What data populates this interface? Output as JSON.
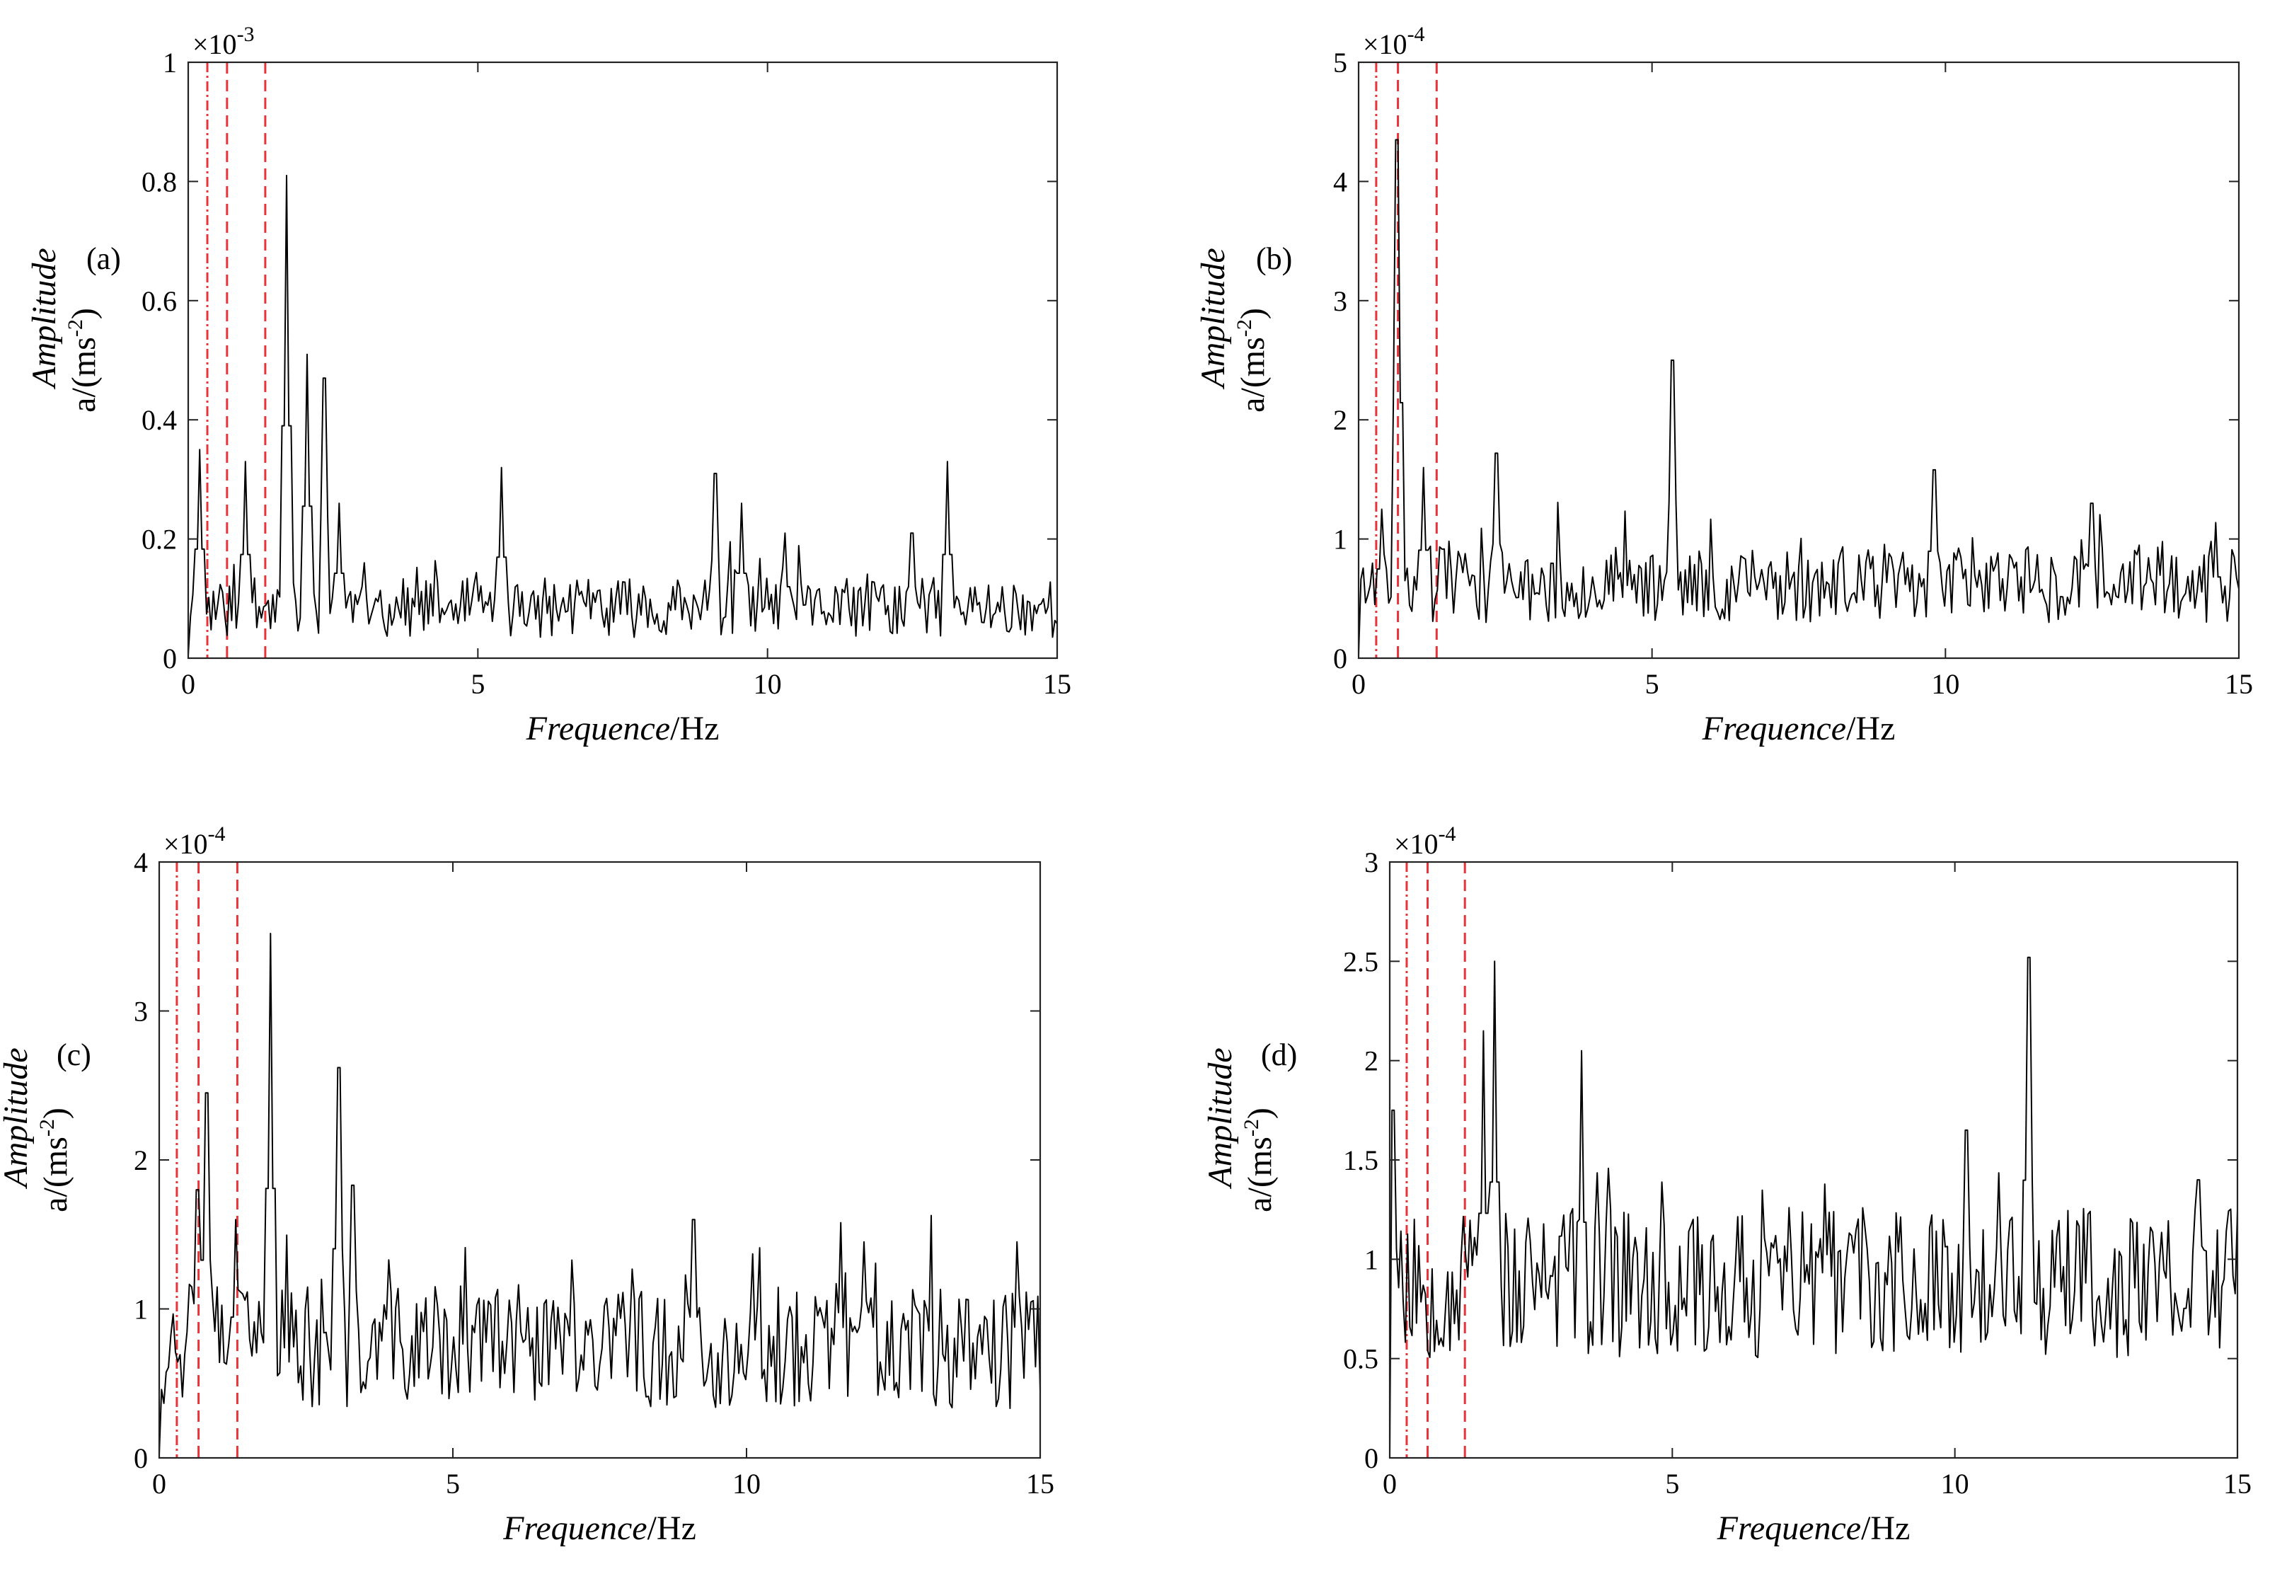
{
  "figure": {
    "background": "#ffffff",
    "line_color": "#000000",
    "marker_line_color": "#e8333a"
  },
  "chart_data": [
    {
      "type": "line",
      "panel": "(a)",
      "scale_label": "×10",
      "scale_exponent": "-3",
      "xlabel_italic": "Frequence",
      "xlabel_unit": "/Hz",
      "ylabel_italic": "Amplitude",
      "ylabel_unit": "a/(ms",
      "ylabel_unit_exp": "-2",
      "ylabel_unit_close": ")",
      "xlim": [
        0,
        15
      ],
      "ylim": [
        0,
        1
      ],
      "xticks": [
        "0",
        "5",
        "10",
        "15"
      ],
      "yticks": [
        "0",
        "0.2",
        "0.4",
        "0.6",
        "0.8",
        "1"
      ],
      "xtick_values": [
        0,
        5,
        10,
        15
      ],
      "ytick_values": [
        0,
        0.2,
        0.4,
        0.6,
        0.8,
        1
      ],
      "ref_lines": [
        0.33,
        0.67,
        1.33
      ],
      "peaks": [
        [
          0.2,
          0.35
        ],
        [
          0.98,
          0.33
        ],
        [
          1.7,
          0.81
        ],
        [
          2.05,
          0.51
        ],
        [
          2.35,
          0.47
        ],
        [
          2.6,
          0.26
        ],
        [
          5.4,
          0.32
        ],
        [
          9.1,
          0.31
        ],
        [
          9.55,
          0.26
        ],
        [
          10.3,
          0.21
        ],
        [
          12.5,
          0.21
        ],
        [
          13.1,
          0.33
        ]
      ],
      "baseline": 0.085,
      "noise": 0.05,
      "points": 380,
      "seed": 11
    },
    {
      "type": "line",
      "panel": "(b)",
      "scale_label": "×10",
      "scale_exponent": "-4",
      "xlabel_italic": "Frequence",
      "xlabel_unit": "/Hz",
      "ylabel_italic": "Amplitude",
      "ylabel_unit": "a/(ms",
      "ylabel_unit_exp": "-2",
      "ylabel_unit_close": ")",
      "xlim": [
        0,
        15
      ],
      "ylim": [
        0,
        5
      ],
      "xticks": [
        "0",
        "5",
        "10",
        "15"
      ],
      "yticks": [
        "0",
        "1",
        "2",
        "3",
        "4",
        "5"
      ],
      "xtick_values": [
        0,
        5,
        10,
        15
      ],
      "ytick_values": [
        0,
        1,
        2,
        3,
        4,
        5
      ],
      "ref_lines": [
        0.3,
        0.67,
        1.33
      ],
      "peaks": [
        [
          0.4,
          1.25
        ],
        [
          0.66,
          4.35
        ],
        [
          1.1,
          1.6
        ],
        [
          2.35,
          1.72
        ],
        [
          5.35,
          2.5
        ],
        [
          9.8,
          1.58
        ],
        [
          12.5,
          1.3
        ],
        [
          14.6,
          1.1
        ]
      ],
      "baseline": 0.62,
      "noise": 0.32,
      "points": 380,
      "seed": 23
    },
    {
      "type": "line",
      "panel": "(c)",
      "scale_label": "×10",
      "scale_exponent": "-4",
      "xlabel_italic": "Frequence",
      "xlabel_unit": "/Hz",
      "ylabel_italic": "Amplitude",
      "ylabel_unit": "a/(ms",
      "ylabel_unit_exp": "-2",
      "ylabel_unit_close": ")",
      "xlim": [
        0,
        15
      ],
      "ylim": [
        0,
        4
      ],
      "xticks": [
        "0",
        "5",
        "10",
        "15"
      ],
      "yticks": [
        "0",
        "1",
        "2",
        "3",
        "4"
      ],
      "xtick_values": [
        0,
        5,
        10,
        15
      ],
      "ytick_values": [
        0,
        1,
        2,
        3,
        4
      ],
      "ref_lines": [
        0.3,
        0.67,
        1.33
      ],
      "peaks": [
        [
          0.66,
          1.8
        ],
        [
          0.8,
          2.45
        ],
        [
          1.3,
          1.6
        ],
        [
          1.9,
          3.52
        ],
        [
          3.05,
          2.62
        ],
        [
          3.3,
          1.83
        ],
        [
          9.1,
          1.6
        ],
        [
          12.0,
          1.45
        ],
        [
          14.6,
          1.45
        ]
      ],
      "baseline": 0.75,
      "noise": 0.42,
      "points": 380,
      "seed": 37
    },
    {
      "type": "line",
      "panel": "(d)",
      "scale_label": "×10",
      "scale_exponent": "-4",
      "xlabel_italic": "Frequence",
      "xlabel_unit": "/Hz",
      "ylabel_italic": "Amplitude",
      "ylabel_unit": "a/(ms",
      "ylabel_unit_exp": "-2",
      "ylabel_unit_close": ")",
      "xlim": [
        0,
        15
      ],
      "ylim": [
        0,
        3
      ],
      "xticks": [
        "0",
        "5",
        "10",
        "15"
      ],
      "yticks": [
        "0",
        "0.5",
        "1",
        "1.5",
        "2",
        "2.5",
        "3"
      ],
      "xtick_values": [
        0,
        5,
        10,
        15
      ],
      "ytick_values": [
        0,
        0.5,
        1,
        1.5,
        2,
        2.5,
        3
      ],
      "ref_lines": [
        0.3,
        0.67,
        1.33
      ],
      "peaks": [
        [
          0.05,
          1.75
        ],
        [
          1.65,
          2.15
        ],
        [
          1.85,
          2.5
        ],
        [
          3.4,
          2.05
        ],
        [
          10.2,
          1.65
        ],
        [
          11.3,
          2.52
        ],
        [
          14.3,
          1.4
        ],
        [
          15.0,
          1.25
        ]
      ],
      "baseline": 0.88,
      "noise": 0.38,
      "points": 380,
      "seed": 53
    }
  ]
}
